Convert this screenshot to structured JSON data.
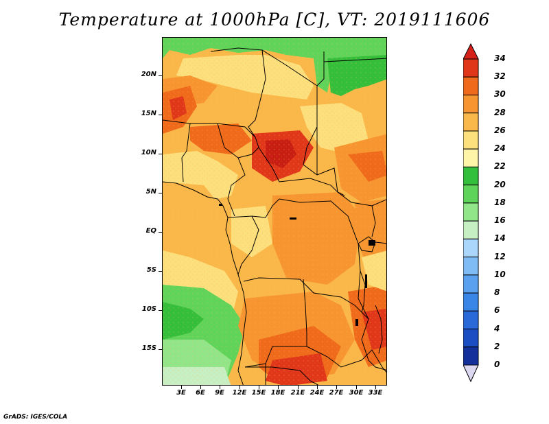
{
  "title": "Temperature at 1000hPa [C], VT: 2019111606",
  "footer": "GrADS: IGES/COLA",
  "map": {
    "lat_range": [
      -19,
      24
    ],
    "lon_range": [
      0,
      34.5
    ],
    "lat_ticks": [
      "20N",
      "15N",
      "10N",
      "5N",
      "EQ",
      "5S",
      "10S",
      "15S"
    ],
    "lon_ticks": [
      "3E",
      "6E",
      "9E",
      "12E",
      "15E",
      "18E",
      "21E",
      "24E",
      "27E",
      "30E",
      "33E"
    ]
  },
  "colorbar": {
    "levels": [
      "0",
      "2",
      "4",
      "6",
      "8",
      "10",
      "12",
      "14",
      "16",
      "18",
      "20",
      "22",
      "24",
      "26",
      "28",
      "30",
      "32",
      "34"
    ],
    "colors": [
      "#0b1a6b",
      "#14309a",
      "#1a4ec2",
      "#2a6ad8",
      "#3a86e6",
      "#5aa2f0",
      "#7fbcf5",
      "#a9d6fa",
      "#c7efc4",
      "#92e68a",
      "#5fd45a",
      "#33bf3b",
      "#fef5a8",
      "#fde07e",
      "#fbb84a",
      "#f79630",
      "#f06a1c",
      "#e0361a",
      "#c71d12"
    ],
    "under_color": "#ddd8f2",
    "over_color": "#d6201a"
  }
}
